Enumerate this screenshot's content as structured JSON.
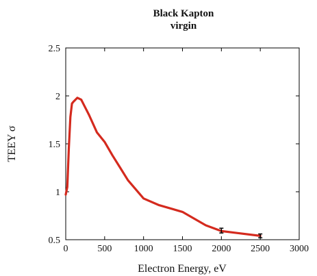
{
  "chart_data": {
    "type": "line",
    "title_lines": [
      "Black Kapton",
      "virgin"
    ],
    "xlabel": "Electron Energy, eV",
    "ylabel": "TEEY σ",
    "xlim": [
      0,
      3000
    ],
    "ylim": [
      0.5,
      2.5
    ],
    "x_ticks": [
      "0",
      "500",
      "1000",
      "1500",
      "2000",
      "2500",
      "3000"
    ],
    "y_ticks": [
      "0.5",
      "1",
      "1.5",
      "2",
      "2.5"
    ],
    "grid": false,
    "series_color": "#d42a1e",
    "x": [
      0,
      20,
      40,
      60,
      80,
      100,
      150,
      200,
      250,
      300,
      400,
      500,
      600,
      700,
      800,
      1000,
      1200,
      1500,
      1800,
      2000,
      2200,
      2500
    ],
    "y": [
      0.97,
      1.05,
      1.45,
      1.78,
      1.92,
      1.94,
      1.98,
      1.96,
      1.88,
      1.8,
      1.62,
      1.52,
      1.38,
      1.25,
      1.12,
      0.93,
      0.86,
      0.79,
      0.65,
      0.59,
      0.57,
      0.54
    ],
    "error_bars": [
      {
        "x": 2000,
        "low": 0.57,
        "high": 0.62
      },
      {
        "x": 2500,
        "low": 0.52,
        "high": 0.56
      }
    ]
  }
}
